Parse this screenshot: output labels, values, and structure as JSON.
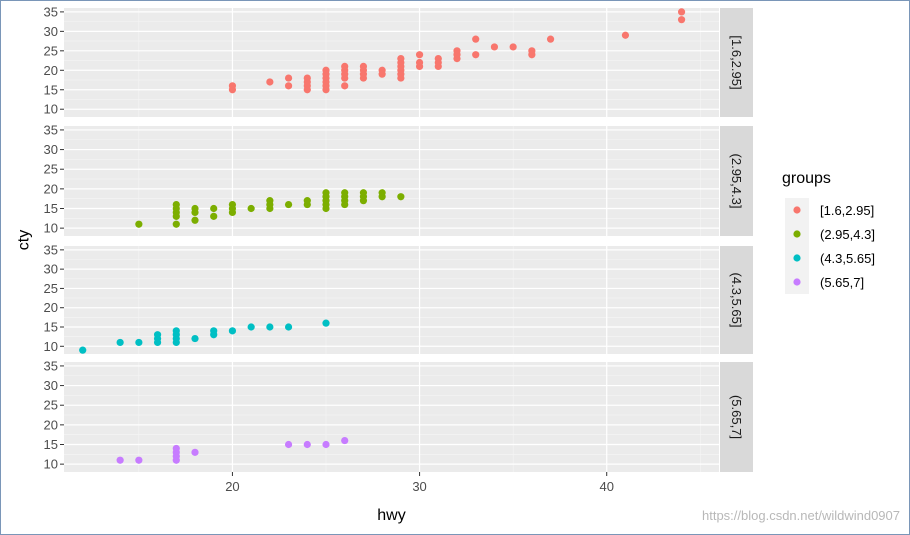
{
  "chart_data": {
    "type": "scatter",
    "xlabel": "hwy",
    "ylabel": "cty",
    "xlim": [
      11,
      46
    ],
    "ylim": [
      8,
      36
    ],
    "x_ticks": [
      20,
      30,
      40
    ],
    "y_ticks": [
      10,
      15,
      20,
      25,
      30,
      35
    ],
    "grid": true,
    "legend": {
      "title": "groups",
      "position": "right"
    },
    "facets": [
      {
        "strip": "[1.6,2.95]",
        "color": "#F8766D",
        "points": [
          [
            20,
            15
          ],
          [
            20,
            16
          ],
          [
            22,
            17
          ],
          [
            23,
            16
          ],
          [
            23,
            18
          ],
          [
            24,
            15
          ],
          [
            24,
            16
          ],
          [
            24,
            17
          ],
          [
            24,
            18
          ],
          [
            25,
            15
          ],
          [
            25,
            16
          ],
          [
            25,
            17
          ],
          [
            25,
            18
          ],
          [
            25,
            19
          ],
          [
            25,
            20
          ],
          [
            26,
            16
          ],
          [
            26,
            18
          ],
          [
            26,
            19
          ],
          [
            26,
            20
          ],
          [
            26,
            21
          ],
          [
            27,
            18
          ],
          [
            27,
            19
          ],
          [
            27,
            20
          ],
          [
            27,
            21
          ],
          [
            28,
            19
          ],
          [
            28,
            20
          ],
          [
            29,
            18
          ],
          [
            29,
            19
          ],
          [
            29,
            20
          ],
          [
            29,
            21
          ],
          [
            29,
            22
          ],
          [
            29,
            23
          ],
          [
            30,
            21
          ],
          [
            30,
            22
          ],
          [
            30,
            24
          ],
          [
            31,
            21
          ],
          [
            31,
            22
          ],
          [
            31,
            23
          ],
          [
            32,
            23
          ],
          [
            32,
            24
          ],
          [
            32,
            25
          ],
          [
            33,
            24
          ],
          [
            33,
            28
          ],
          [
            34,
            26
          ],
          [
            35,
            26
          ],
          [
            36,
            24
          ],
          [
            36,
            25
          ],
          [
            37,
            28
          ],
          [
            41,
            29
          ],
          [
            44,
            33
          ],
          [
            44,
            35
          ]
        ]
      },
      {
        "strip": "(2.95,4.3]",
        "color": "#7CAE00",
        "points": [
          [
            15,
            11
          ],
          [
            17,
            11
          ],
          [
            17,
            13
          ],
          [
            17,
            14
          ],
          [
            17,
            15
          ],
          [
            17,
            16
          ],
          [
            18,
            12
          ],
          [
            18,
            14
          ],
          [
            18,
            15
          ],
          [
            19,
            13
          ],
          [
            19,
            15
          ],
          [
            20,
            14
          ],
          [
            20,
            15
          ],
          [
            20,
            16
          ],
          [
            21,
            15
          ],
          [
            22,
            15
          ],
          [
            22,
            16
          ],
          [
            22,
            17
          ],
          [
            23,
            16
          ],
          [
            24,
            16
          ],
          [
            24,
            17
          ],
          [
            25,
            15
          ],
          [
            25,
            16
          ],
          [
            25,
            17
          ],
          [
            25,
            18
          ],
          [
            25,
            19
          ],
          [
            26,
            16
          ],
          [
            26,
            17
          ],
          [
            26,
            18
          ],
          [
            26,
            19
          ],
          [
            27,
            17
          ],
          [
            27,
            18
          ],
          [
            27,
            19
          ],
          [
            28,
            18
          ],
          [
            28,
            19
          ],
          [
            29,
            18
          ]
        ]
      },
      {
        "strip": "(4.3,5.65]",
        "color": "#00BFC4",
        "points": [
          [
            12,
            9
          ],
          [
            14,
            11
          ],
          [
            15,
            11
          ],
          [
            16,
            11
          ],
          [
            16,
            12
          ],
          [
            16,
            13
          ],
          [
            17,
            11
          ],
          [
            17,
            12
          ],
          [
            17,
            13
          ],
          [
            17,
            14
          ],
          [
            18,
            12
          ],
          [
            19,
            13
          ],
          [
            19,
            14
          ],
          [
            20,
            14
          ],
          [
            21,
            15
          ],
          [
            22,
            15
          ],
          [
            23,
            15
          ],
          [
            25,
            16
          ]
        ]
      },
      {
        "strip": "(5.65,7]",
        "color": "#C77CFF",
        "points": [
          [
            14,
            11
          ],
          [
            15,
            11
          ],
          [
            17,
            11
          ],
          [
            17,
            12
          ],
          [
            17,
            13
          ],
          [
            17,
            14
          ],
          [
            18,
            13
          ],
          [
            23,
            15
          ],
          [
            24,
            15
          ],
          [
            25,
            15
          ],
          [
            26,
            16
          ]
        ]
      }
    ]
  },
  "watermark": "https://blog.csdn.net/wildwind0907"
}
